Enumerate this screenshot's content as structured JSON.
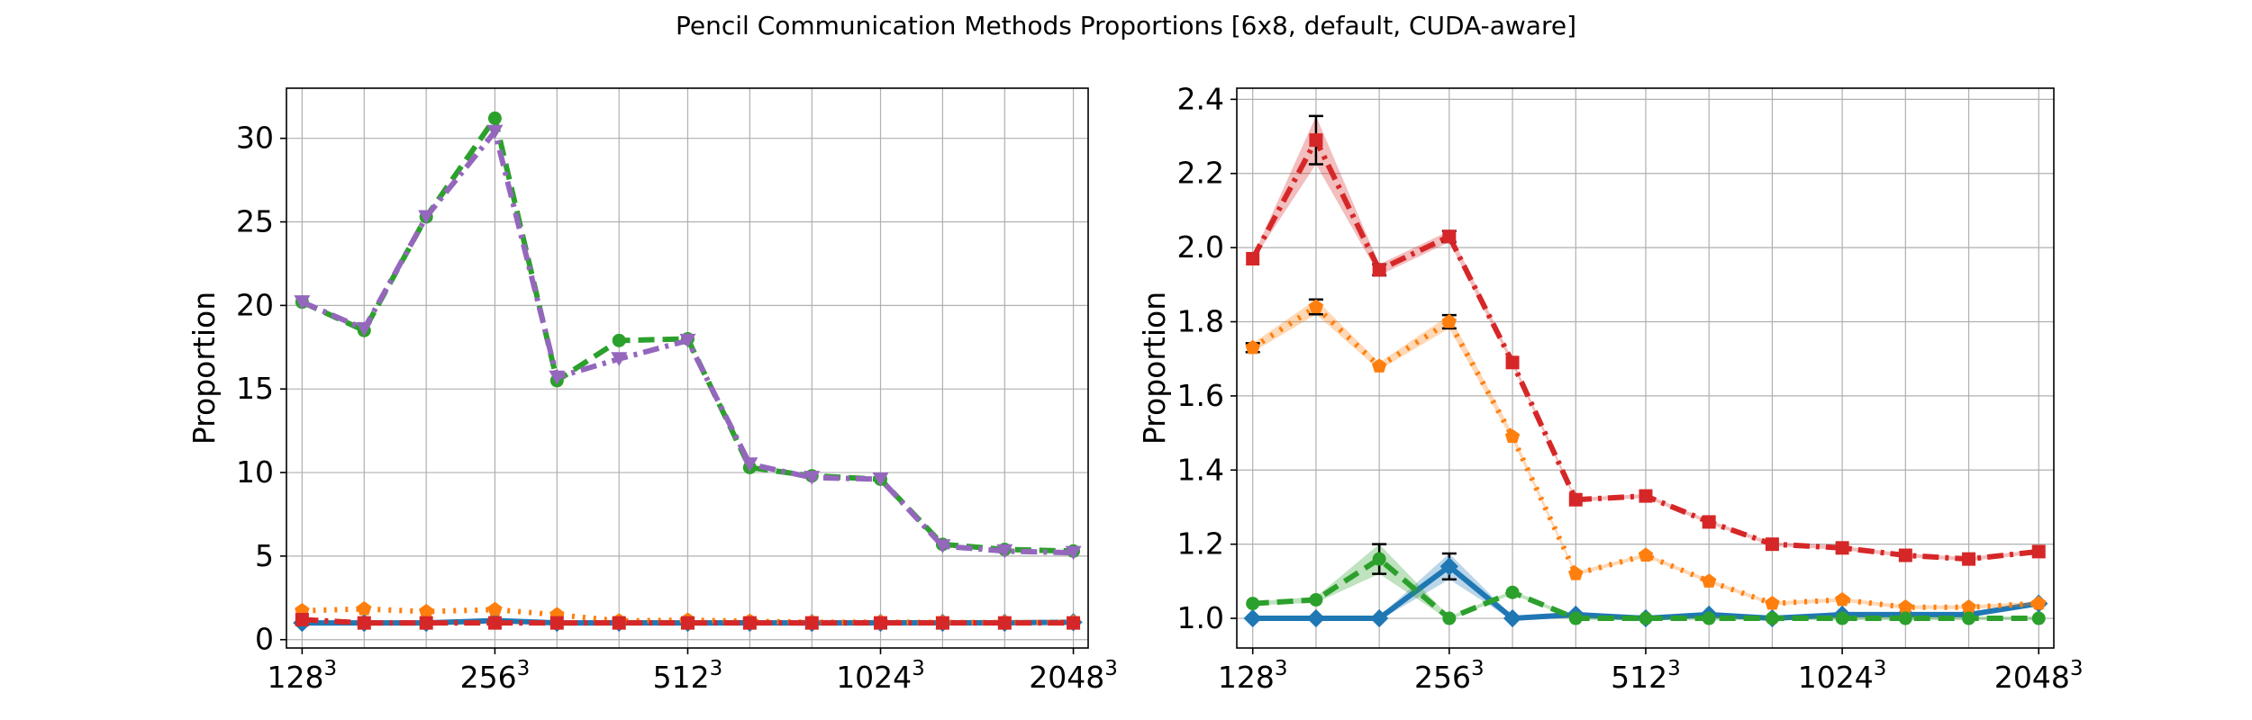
{
  "figure": {
    "title": "Pencil Communication Methods Proportions [6x8, default, CUDA-aware]"
  },
  "chart_data": [
    {
      "type": "line",
      "title": "",
      "xlabel": "",
      "ylabel": "Proportion",
      "x": [
        128,
        160,
        200,
        256,
        320,
        400,
        512,
        640,
        800,
        1024,
        1280,
        1600,
        2048
      ],
      "x_scale": "log",
      "xlim": [
        121,
        2160
      ],
      "ylim": [
        -0.5,
        33
      ],
      "xticks": [
        {
          "value": 128,
          "base": "128",
          "exp": "3"
        },
        {
          "value": 256,
          "base": "256",
          "exp": "3"
        },
        {
          "value": 512,
          "base": "512",
          "exp": "3"
        },
        {
          "value": 1024,
          "base": "1024",
          "exp": "3"
        },
        {
          "value": 2048,
          "base": "2048",
          "exp": "3"
        }
      ],
      "yticks": [
        0,
        5,
        10,
        15,
        20,
        25,
        30
      ],
      "ytick_labels": [
        "0",
        "5",
        "10",
        "15",
        "20",
        "25",
        "30"
      ],
      "grid": true,
      "series": [
        {
          "color": "#1f77b4",
          "marker": "diamond",
          "dash": "solid",
          "values": [
            1.0,
            1.0,
            1.0,
            1.14,
            1.0,
            1.01,
            1.0,
            1.01,
            1.0,
            1.01,
            1.01,
            1.01,
            1.04
          ]
        },
        {
          "color": "#ff7f0e",
          "marker": "pentagon",
          "dash": "dot",
          "values": [
            1.73,
            1.84,
            1.68,
            1.8,
            1.49,
            1.12,
            1.17,
            1.1,
            1.04,
            1.05,
            1.03,
            1.03,
            1.04
          ]
        },
        {
          "color": "#2ca02c",
          "marker": "circle",
          "dash": "dash",
          "values": [
            20.2,
            18.5,
            25.3,
            31.2,
            15.5,
            17.9,
            18.0,
            10.3,
            9.8,
            9.6,
            5.7,
            5.4,
            5.3
          ]
        },
        {
          "color": "#d62728",
          "marker": "square",
          "dash": "dashdot",
          "values": [
            1.2,
            1.0,
            1.0,
            1.0,
            1.0,
            1.0,
            1.0,
            1.0,
            1.0,
            1.0,
            1.0,
            1.0,
            1.0
          ]
        },
        {
          "color": "#9467bd",
          "marker": "triangle",
          "dash": "dashdot",
          "values": [
            20.2,
            18.6,
            25.3,
            30.4,
            15.7,
            16.8,
            17.9,
            10.5,
            9.7,
            9.6,
            5.6,
            5.3,
            5.2
          ]
        }
      ]
    },
    {
      "type": "line",
      "title": "",
      "xlabel": "",
      "ylabel": "Proportion",
      "x": [
        128,
        160,
        200,
        256,
        320,
        400,
        512,
        640,
        800,
        1024,
        1280,
        1600,
        2048
      ],
      "x_scale": "log",
      "xlim": [
        121,
        2160
      ],
      "ylim": [
        0.92,
        2.43
      ],
      "xticks": [
        {
          "value": 128,
          "base": "128",
          "exp": "3"
        },
        {
          "value": 256,
          "base": "256",
          "exp": "3"
        },
        {
          "value": 512,
          "base": "512",
          "exp": "3"
        },
        {
          "value": 1024,
          "base": "1024",
          "exp": "3"
        },
        {
          "value": 2048,
          "base": "2048",
          "exp": "3"
        }
      ],
      "yticks": [
        1.0,
        1.2,
        1.4,
        1.6,
        1.8,
        2.0,
        2.2,
        2.4
      ],
      "ytick_labels": [
        "1.0",
        "1.2",
        "1.4",
        "1.6",
        "1.8",
        "2.0",
        "2.2",
        "2.4"
      ],
      "grid": true,
      "series": [
        {
          "color": "#1f77b4",
          "marker": "diamond",
          "dash": "solid",
          "values": [
            1.0,
            1.0,
            1.0,
            1.14,
            1.0,
            1.01,
            1.0,
            1.01,
            1.0,
            1.01,
            1.01,
            1.01,
            1.04
          ],
          "err": [
            0.005,
            0.005,
            0.005,
            0.035,
            0.005,
            0.005,
            0.005,
            0.008,
            0.005,
            0.005,
            0.005,
            0.005,
            0.005
          ]
        },
        {
          "color": "#ff7f0e",
          "marker": "pentagon",
          "dash": "dot",
          "values": [
            1.73,
            1.84,
            1.68,
            1.8,
            1.49,
            1.12,
            1.17,
            1.1,
            1.04,
            1.05,
            1.03,
            1.03,
            1.04
          ],
          "err": [
            0.012,
            0.02,
            0.01,
            0.018,
            0.01,
            0.005,
            0.005,
            0.005,
            0.005,
            0.005,
            0.005,
            0.005,
            0.005
          ]
        },
        {
          "color": "#2ca02c",
          "marker": "circle",
          "dash": "dash",
          "values": [
            1.04,
            1.05,
            1.16,
            1.0,
            1.07,
            1.0,
            1.0,
            1.0,
            1.0,
            1.0,
            1.0,
            1.0,
            1.0
          ],
          "err": [
            0.005,
            0.008,
            0.04,
            0.005,
            0.005,
            0.005,
            0.005,
            0.005,
            0.005,
            0.005,
            0.005,
            0.005,
            0.005
          ]
        },
        {
          "color": "#d62728",
          "marker": "square",
          "dash": "dashdot",
          "values": [
            1.97,
            2.29,
            1.94,
            2.03,
            1.69,
            1.32,
            1.33,
            1.26,
            1.2,
            1.19,
            1.17,
            1.16,
            1.18
          ],
          "err": [
            0.005,
            0.065,
            0.015,
            0.015,
            0.008,
            0.005,
            0.005,
            0.005,
            0.005,
            0.005,
            0.005,
            0.005,
            0.005
          ]
        }
      ]
    }
  ]
}
